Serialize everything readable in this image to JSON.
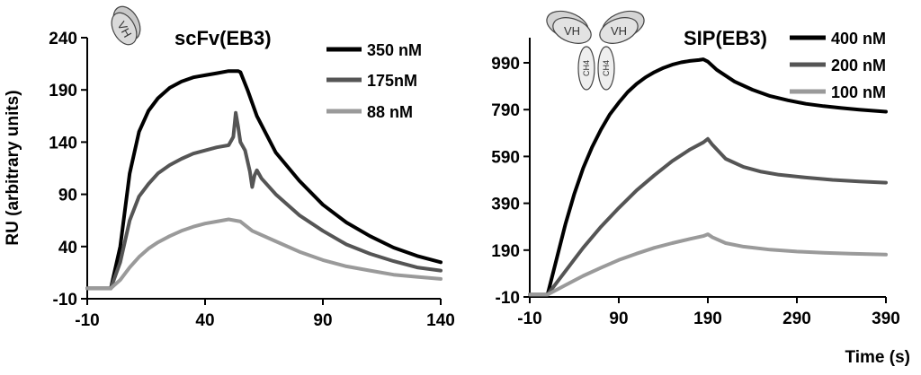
{
  "chart_data": [
    {
      "type": "line",
      "title": "scFv(EB3)",
      "xlabel": "",
      "ylabel": "RU (arbitrary units)",
      "xlim": [
        -10,
        140
      ],
      "ylim": [
        -10,
        240
      ],
      "xticks": [
        "-10",
        "40",
        "90",
        "140"
      ],
      "yticks": [
        "-10",
        "40",
        "90",
        "140",
        "190",
        "240"
      ],
      "icon_labels": [
        "VH"
      ],
      "legend_position": "top-right",
      "series": [
        {
          "name": "350 nM",
          "color": "#000000",
          "points": [
            [
              -10,
              0
            ],
            [
              0,
              0
            ],
            [
              4,
              40
            ],
            [
              8,
              110
            ],
            [
              12,
              150
            ],
            [
              16,
              170
            ],
            [
              20,
              182
            ],
            [
              25,
              192
            ],
            [
              30,
              198
            ],
            [
              35,
              202
            ],
            [
              40,
              204
            ],
            [
              45,
              206
            ],
            [
              50,
              208
            ],
            [
              54,
              208
            ],
            [
              55,
              207
            ],
            [
              58,
              190
            ],
            [
              62,
              165
            ],
            [
              70,
              130
            ],
            [
              80,
              103
            ],
            [
              90,
              80
            ],
            [
              100,
              63
            ],
            [
              110,
              50
            ],
            [
              120,
              39
            ],
            [
              130,
              31
            ],
            [
              140,
              25
            ]
          ]
        },
        {
          "name": "175nM",
          "color": "#555555",
          "points": [
            [
              -10,
              0
            ],
            [
              0,
              0
            ],
            [
              4,
              25
            ],
            [
              8,
              65
            ],
            [
              12,
              88
            ],
            [
              16,
              100
            ],
            [
              20,
              110
            ],
            [
              25,
              118
            ],
            [
              30,
              124
            ],
            [
              35,
              129
            ],
            [
              40,
              132
            ],
            [
              45,
              135
            ],
            [
              50,
              137
            ],
            [
              52,
              145
            ],
            [
              53,
              168
            ],
            [
              54,
              155
            ],
            [
              55,
              140
            ],
            [
              57,
              132
            ],
            [
              59,
              112
            ],
            [
              60,
              97
            ],
            [
              61,
              108
            ],
            [
              62,
              113
            ],
            [
              64,
              105
            ],
            [
              70,
              90
            ],
            [
              80,
              70
            ],
            [
              90,
              55
            ],
            [
              100,
              42
            ],
            [
              110,
              33
            ],
            [
              120,
              26
            ],
            [
              130,
              20
            ],
            [
              140,
              17
            ]
          ]
        },
        {
          "name": "88 nM",
          "color": "#9a9a9a",
          "points": [
            [
              -10,
              0
            ],
            [
              0,
              0
            ],
            [
              4,
              8
            ],
            [
              8,
              20
            ],
            [
              12,
              30
            ],
            [
              16,
              38
            ],
            [
              20,
              44
            ],
            [
              25,
              50
            ],
            [
              30,
              55
            ],
            [
              35,
              59
            ],
            [
              40,
              62
            ],
            [
              45,
              64
            ],
            [
              50,
              66
            ],
            [
              55,
              64
            ],
            [
              60,
              55
            ],
            [
              70,
              45
            ],
            [
              80,
              35
            ],
            [
              90,
              27
            ],
            [
              100,
              21
            ],
            [
              110,
              17
            ],
            [
              120,
              13
            ],
            [
              130,
              11
            ],
            [
              140,
              9
            ]
          ]
        }
      ]
    },
    {
      "type": "line",
      "title": "SIP(EB3)",
      "xlabel": "Time (s)",
      "ylabel": "",
      "xlim": [
        -10,
        390
      ],
      "ylim": [
        -10,
        1090
      ],
      "xticks": [
        "-10",
        "90",
        "190",
        "290",
        "390"
      ],
      "yticks": [
        "-10",
        "190",
        "390",
        "590",
        "790",
        "990"
      ],
      "icon_labels": [
        "VH",
        "VH",
        "CH4",
        "CH4"
      ],
      "legend_position": "top-right",
      "series": [
        {
          "name": "400 nM",
          "color": "#000000",
          "points": [
            [
              -10,
              0
            ],
            [
              10,
              0
            ],
            [
              20,
              150
            ],
            [
              30,
              300
            ],
            [
              40,
              430
            ],
            [
              50,
              540
            ],
            [
              60,
              630
            ],
            [
              70,
              705
            ],
            [
              80,
              770
            ],
            [
              90,
              820
            ],
            [
              100,
              865
            ],
            [
              110,
              900
            ],
            [
              120,
              928
            ],
            [
              130,
              950
            ],
            [
              140,
              968
            ],
            [
              150,
              982
            ],
            [
              160,
              992
            ],
            [
              170,
              998
            ],
            [
              180,
              1002
            ],
            [
              185,
              1005
            ],
            [
              190,
              995
            ],
            [
              200,
              960
            ],
            [
              220,
              910
            ],
            [
              240,
              875
            ],
            [
              260,
              848
            ],
            [
              280,
              830
            ],
            [
              300,
              815
            ],
            [
              320,
              805
            ],
            [
              340,
              797
            ],
            [
              360,
              790
            ],
            [
              380,
              784
            ],
            [
              390,
              781
            ]
          ]
        },
        {
          "name": "200 nM",
          "color": "#555555",
          "points": [
            [
              -10,
              0
            ],
            [
              10,
              0
            ],
            [
              30,
              100
            ],
            [
              50,
              200
            ],
            [
              70,
              290
            ],
            [
              90,
              370
            ],
            [
              110,
              445
            ],
            [
              130,
              510
            ],
            [
              150,
              570
            ],
            [
              170,
              620
            ],
            [
              185,
              650
            ],
            [
              190,
              665
            ],
            [
              195,
              640
            ],
            [
              210,
              580
            ],
            [
              230,
              545
            ],
            [
              250,
              525
            ],
            [
              270,
              512
            ],
            [
              300,
              500
            ],
            [
              330,
              490
            ],
            [
              360,
              483
            ],
            [
              390,
              478
            ]
          ]
        },
        {
          "name": "100 nM",
          "color": "#9a9a9a",
          "points": [
            [
              -10,
              0
            ],
            [
              10,
              0
            ],
            [
              30,
              40
            ],
            [
              50,
              80
            ],
            [
              70,
              115
            ],
            [
              90,
              148
            ],
            [
              110,
              175
            ],
            [
              130,
              200
            ],
            [
              150,
              220
            ],
            [
              170,
              238
            ],
            [
              185,
              250
            ],
            [
              190,
              258
            ],
            [
              195,
              245
            ],
            [
              210,
              220
            ],
            [
              230,
              205
            ],
            [
              260,
              192
            ],
            [
              290,
              184
            ],
            [
              320,
              179
            ],
            [
              350,
              175
            ],
            [
              390,
              171
            ]
          ]
        }
      ]
    }
  ]
}
